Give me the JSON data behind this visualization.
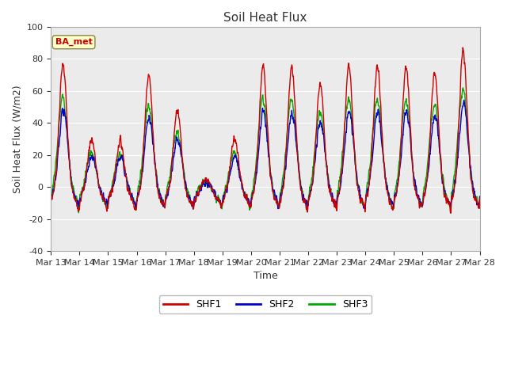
{
  "title": "Soil Heat Flux",
  "xlabel": "Time",
  "ylabel": "Soil Heat Flux (W/m2)",
  "ylim": [
    -40,
    100
  ],
  "line_colors": {
    "SHF1": "#cc0000",
    "SHF2": "#0000cc",
    "SHF3": "#00aa00"
  },
  "line_widths": {
    "SHF1": 1.0,
    "SHF2": 1.0,
    "SHF3": 1.0
  },
  "annotation_text": "BA_met",
  "annotation_color": "#cc0000",
  "annotation_bg": "#ffffcc",
  "fig_bg": "#ffffff",
  "plot_bg": "#ebebeb",
  "xtick_labels": [
    "Mar 13",
    "Mar 14",
    "Mar 15",
    "Mar 16",
    "Mar 17",
    "Mar 18",
    "Mar 19",
    "Mar 20",
    "Mar 21",
    "Mar 22",
    "Mar 23",
    "Mar 24",
    "Mar 25",
    "Mar 26",
    "Mar 27",
    "Mar 28"
  ],
  "ytick_values": [
    -40,
    -20,
    0,
    20,
    40,
    60,
    80,
    100
  ],
  "n_days": 15,
  "pts_per_day": 144,
  "day_amps": [
    77,
    30,
    29,
    70,
    48,
    5,
    30,
    76,
    75,
    65,
    76,
    76,
    75,
    72,
    85
  ],
  "night_base": -28
}
